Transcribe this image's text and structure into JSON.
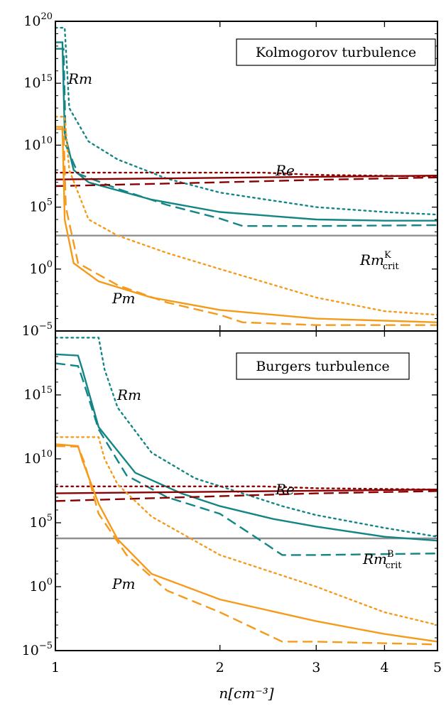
{
  "chart_data": {
    "type": "line",
    "xlabel": "n[cm⁻³]",
    "x_scale": "log",
    "x_ticks": [
      "1",
      "2",
      "3",
      "4",
      "5"
    ],
    "x_tick_values": [
      1,
      2,
      3,
      4,
      5
    ],
    "xlim": [
      1,
      5
    ],
    "y_scale": "log",
    "ylim": [
      1e-05,
      1e+20
    ],
    "y_ticks": [
      {
        "base": "10",
        "exp": "20",
        "value": 1e+20
      },
      {
        "base": "10",
        "exp": "15",
        "value": 1000000000000000.0
      },
      {
        "base": "10",
        "exp": "10",
        "value": 10000000000.0
      },
      {
        "base": "10",
        "exp": "5",
        "value": 100000.0
      },
      {
        "base": "10",
        "exp": "0",
        "value": 1
      },
      {
        "base": "10",
        "exp": "−5",
        "value": 1e-05
      }
    ],
    "colors": {
      "Rm": "#138585",
      "Re": "#8b0000",
      "Pm": "#f59a1a",
      "crit": "#909090"
    },
    "line_styles": [
      "solid",
      "dashed",
      "dotted"
    ],
    "panels": [
      {
        "title": "Kolmogorov turbulence",
        "crit_label": {
          "main": "Rm",
          "sub": "crit",
          "sup": "K"
        },
        "crit_value": 500.0,
        "labels": {
          "Rm": "Rm",
          "Re": "Re",
          "Pm": "Pm"
        },
        "series": [
          {
            "quantity": "Rm",
            "style": "solid",
            "points": [
              [
                1.0,
                2e+18
              ],
              [
                1.03,
                2e+18
              ],
              [
                1.04,
                100000000000.0
              ],
              [
                1.08,
                100000000.0
              ],
              [
                1.15,
                10000000.0
              ],
              [
                1.5,
                400000.0
              ],
              [
                2.0,
                40000.0
              ],
              [
                3.0,
                10000.0
              ],
              [
                4.0,
                8000.0
              ],
              [
                5.0,
                8000.0
              ]
            ]
          },
          {
            "quantity": "Rm",
            "style": "dashed",
            "points": [
              [
                1.0,
                6e+17
              ],
              [
                1.035,
                6e+17
              ],
              [
                1.045,
                10000000000.0
              ],
              [
                1.1,
                50000000.0
              ],
              [
                1.3,
                3000000.0
              ],
              [
                1.6,
                150000.0
              ],
              [
                2.0,
                12000.0
              ],
              [
                2.2,
                3000.0
              ],
              [
                3.0,
                3000.0
              ],
              [
                5.0,
                3500.0
              ]
            ]
          },
          {
            "quantity": "Rm",
            "style": "dotted",
            "points": [
              [
                1.0,
                3e+19
              ],
              [
                1.04,
                3e+19
              ],
              [
                1.06,
                10000000000000.0
              ],
              [
                1.15,
                20000000000.0
              ],
              [
                1.3,
                700000000.0
              ],
              [
                1.6,
                20000000.0
              ],
              [
                2.0,
                1500000.0
              ],
              [
                3.0,
                100000.0
              ],
              [
                4.0,
                40000.0
              ],
              [
                5.0,
                25000.0
              ]
            ]
          },
          {
            "quantity": "Re",
            "style": "solid",
            "points": [
              [
                1.0,
                17000000.0
              ],
              [
                5.0,
                35000000.0
              ]
            ]
          },
          {
            "quantity": "Re",
            "style": "dashed",
            "points": [
              [
                1.0,
                5000000.0
              ],
              [
                2.0,
                10000000.0
              ],
              [
                3.0,
                16000000.0
              ],
              [
                5.0,
                25000000.0
              ]
            ]
          },
          {
            "quantity": "Re",
            "style": "dotted",
            "points": [
              [
                1.0,
                60000000.0
              ],
              [
                2.4,
                60000000.0
              ],
              [
                3.0,
                40000000.0
              ],
              [
                5.0,
                30000000.0
              ]
            ]
          },
          {
            "quantity": "Pm",
            "style": "solid",
            "points": [
              [
                1.0,
                300000000000.0
              ],
              [
                1.03,
                300000000000.0
              ],
              [
                1.04,
                10000.0
              ],
              [
                1.08,
                3
              ],
              [
                1.2,
                0.1
              ],
              [
                1.5,
                0.005
              ],
              [
                2.0,
                0.0005
              ],
              [
                3.0,
                0.0001
              ],
              [
                5.0,
                5e-05
              ]
            ]
          },
          {
            "quantity": "Pm",
            "style": "dashed",
            "points": [
              [
                1.0,
                200000000000.0
              ],
              [
                1.035,
                200000000000.0
              ],
              [
                1.045,
                100000.0
              ],
              [
                1.1,
                3
              ],
              [
                1.3,
                0.05
              ],
              [
                1.6,
                0.002
              ],
              [
                2.0,
                0.0002
              ],
              [
                2.2,
                5e-05
              ],
              [
                3.0,
                3e-05
              ],
              [
                5.0,
                3e-05
              ]
            ]
          },
          {
            "quantity": "Pm",
            "style": "dotted",
            "points": [
              [
                1.0,
                2000000000000.0
              ],
              [
                1.04,
                2000000000000.0
              ],
              [
                1.06,
                100000000.0
              ],
              [
                1.15,
                10000.0
              ],
              [
                1.3,
                500.0
              ],
              [
                1.6,
                20
              ],
              [
                2.0,
                1
              ],
              [
                3.0,
                0.005
              ],
              [
                4.0,
                0.0004
              ],
              [
                5.0,
                0.0002
              ]
            ]
          }
        ]
      },
      {
        "title": "Burgers turbulence",
        "crit_label": {
          "main": "Rm",
          "sub": "crit",
          "sup": "B"
        },
        "crit_value": 6000.0,
        "labels": {
          "Rm": "Rm",
          "Re": "Re",
          "Pm": "Pm"
        },
        "series": [
          {
            "quantity": "Rm",
            "style": "solid",
            "points": [
              [
                1.0,
                1.5e+18
              ],
              [
                1.1,
                1.2e+18
              ],
              [
                1.12,
                1e+17
              ],
              [
                1.2,
                3000000000000.0
              ],
              [
                1.4,
                800000000.0
              ],
              [
                1.7,
                20000000.0
              ],
              [
                2.0,
                2000000.0
              ],
              [
                2.5,
                200000.0
              ],
              [
                3.0,
                50000.0
              ],
              [
                4.0,
                8000.0
              ],
              [
                5.0,
                4000.0
              ]
            ]
          },
          {
            "quantity": "Rm",
            "style": "dashed",
            "points": [
              [
                1.0,
                3e+17
              ],
              [
                1.1,
                1.8e+17
              ],
              [
                1.12,
                2e+16
              ],
              [
                1.2,
                2000000000000.0
              ],
              [
                1.35,
                500000000.0
              ],
              [
                1.6,
                10000000.0
              ],
              [
                2.0,
                500000.0
              ],
              [
                2.3,
                10000.0
              ],
              [
                2.6,
                300.0
              ],
              [
                3.0,
                300.0
              ],
              [
                5.0,
                400.0
              ]
            ]
          },
          {
            "quantity": "Rm",
            "style": "dotted",
            "points": [
              [
                1.0,
                3e+19
              ],
              [
                1.2,
                3e+19
              ],
              [
                1.23,
                1e+17
              ],
              [
                1.3,
                100000000000000.0
              ],
              [
                1.5,
                30000000000.0
              ],
              [
                1.8,
                300000000.0
              ],
              [
                2.2,
                20000000.0
              ],
              [
                2.6,
                2000000.0
              ],
              [
                3.0,
                400000.0
              ],
              [
                4.0,
                40000.0
              ],
              [
                5.0,
                8000.0
              ]
            ]
          },
          {
            "quantity": "Re",
            "style": "solid",
            "points": [
              [
                1.0,
                20000000.0
              ],
              [
                5.0,
                40000000.0
              ]
            ]
          },
          {
            "quantity": "Re",
            "style": "dashed",
            "points": [
              [
                1.0,
                5000000.0
              ],
              [
                2.0,
                12000000.0
              ],
              [
                3.0,
                20000000.0
              ],
              [
                5.0,
                30000000.0
              ]
            ]
          },
          {
            "quantity": "Re",
            "style": "dotted",
            "points": [
              [
                1.0,
                70000000.0
              ],
              [
                2.4,
                70000000.0
              ],
              [
                3.0,
                50000000.0
              ],
              [
                5.0,
                40000000.0
              ]
            ]
          },
          {
            "quantity": "Pm",
            "style": "solid",
            "points": [
              [
                1.0,
                140000000000.0
              ],
              [
                1.1,
                100000000000.0
              ],
              [
                1.12,
                8000000000.0
              ],
              [
                1.2,
                3000000.0
              ],
              [
                1.3,
                5000.0
              ],
              [
                1.5,
                10
              ],
              [
                2.0,
                0.1
              ],
              [
                3.0,
                0.002
              ],
              [
                4.0,
                0.0002
              ],
              [
                5.0,
                5e-05
              ]
            ]
          },
          {
            "quantity": "Pm",
            "style": "dashed",
            "points": [
              [
                1.0,
                100000000000.0
              ],
              [
                1.1,
                90000000000.0
              ],
              [
                1.13,
                5000000000.0
              ],
              [
                1.2,
                500000.0
              ],
              [
                1.35,
                300.0
              ],
              [
                1.6,
                0.5
              ],
              [
                2.0,
                0.01
              ],
              [
                2.6,
                5e-05
              ],
              [
                3.0,
                5e-05
              ],
              [
                5.0,
                3e-05
              ]
            ]
          },
          {
            "quantity": "Pm",
            "style": "dotted",
            "points": [
              [
                1.0,
                500000000000.0
              ],
              [
                1.2,
                500000000000.0
              ],
              [
                1.23,
                10000000000.0
              ],
              [
                1.3,
                100000000.0
              ],
              [
                1.5,
                300000.0
              ],
              [
                2.0,
                300.0
              ],
              [
                3.0,
                1
              ],
              [
                4.0,
                0.01
              ],
              [
                5.0,
                0.001
              ]
            ]
          }
        ]
      }
    ]
  }
}
